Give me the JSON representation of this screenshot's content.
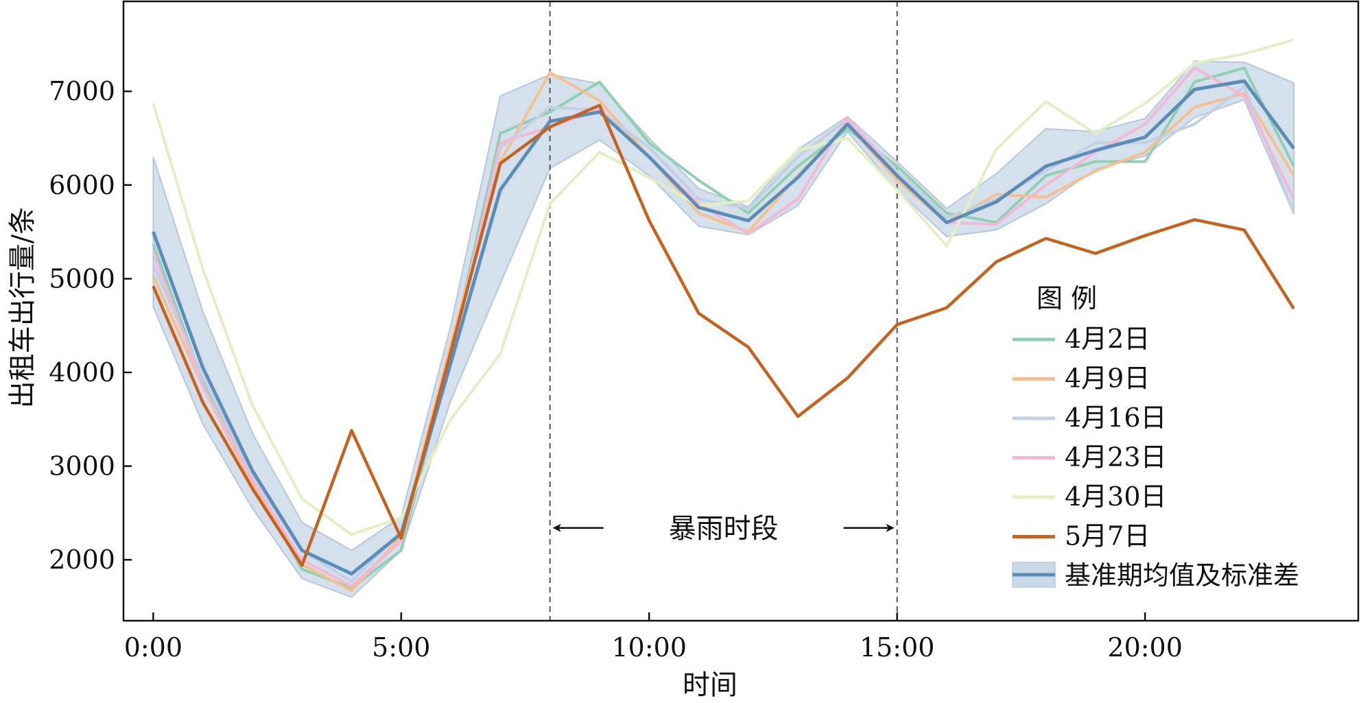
{
  "chart_data": {
    "type": "line",
    "xlabel": "时间",
    "ylabel": "出租车出行量/条",
    "x": [
      0,
      1,
      2,
      3,
      4,
      5,
      6,
      7,
      8,
      9,
      10,
      11,
      12,
      13,
      14,
      15,
      16,
      17,
      18,
      19,
      20,
      21,
      22,
      23
    ],
    "xlim": [
      -0.6,
      24.3
    ],
    "ylim": [
      1350,
      7960
    ],
    "xticks": [
      0,
      5,
      10,
      15,
      20
    ],
    "xtick_labels": [
      "0:00",
      "5:00",
      "10:00",
      "15:00",
      "20:00"
    ],
    "yticks": [
      2000,
      3000,
      4000,
      5000,
      6000,
      7000
    ],
    "ytick_labels": [
      "2000",
      "3000",
      "4000",
      "5000",
      "6000",
      "7000"
    ],
    "grid": false,
    "series": [
      {
        "name": "4月2日",
        "color": "#8fd0b2",
        "values": [
          5370,
          3900,
          2850,
          1900,
          1700,
          2100,
          4200,
          6550,
          6780,
          7100,
          6450,
          6050,
          5700,
          6200,
          6600,
          6200,
          5700,
          5600,
          6100,
          6250,
          6250,
          7100,
          7250,
          6200
        ]
      },
      {
        "name": "4月9日",
        "color": "#f5c08e",
        "values": [
          5030,
          3850,
          2800,
          1950,
          1670,
          2250,
          4300,
          6250,
          7200,
          6900,
          6300,
          5700,
          5500,
          6100,
          6650,
          6050,
          5600,
          5900,
          5870,
          6150,
          6350,
          6830,
          6980,
          6100
        ]
      },
      {
        "name": "4月16日",
        "color": "#c3cfe2",
        "values": [
          5150,
          3950,
          2900,
          2100,
          1770,
          2300,
          4100,
          6400,
          6830,
          6800,
          6400,
          5850,
          5750,
          6300,
          6700,
          6150,
          5650,
          5850,
          6150,
          6450,
          6450,
          6650,
          7050,
          5700
        ]
      },
      {
        "name": "4月23日",
        "color": "#f2b8d6",
        "values": [
          5280,
          3850,
          2850,
          2000,
          1720,
          2200,
          4150,
          6450,
          6620,
          6800,
          6300,
          5800,
          5480,
          5850,
          6720,
          6100,
          5600,
          5580,
          6000,
          6350,
          6650,
          7250,
          6950,
          5850
        ]
      },
      {
        "name": "4月30日",
        "color": "#e3efc3",
        "values": [
          6870,
          5100,
          3650,
          2650,
          2270,
          2450,
          3500,
          4200,
          5800,
          6350,
          6080,
          5780,
          5830,
          6370,
          6500,
          5950,
          5350,
          6380,
          6890,
          6550,
          6870,
          7300,
          7400,
          7550
        ]
      },
      {
        "name": "5月7日",
        "color": "#c6611e",
        "values": [
          4920,
          3680,
          2760,
          1940,
          3380,
          2230,
          4220,
          6230,
          6620,
          6850,
          5620,
          4630,
          4270,
          3530,
          3940,
          4510,
          4690,
          5180,
          5430,
          5270,
          5460,
          5630,
          5520,
          4680
        ]
      }
    ],
    "baseline": {
      "name": "基准期均值及标准差",
      "line_color": "#5b8db8",
      "band_color": "#c9d9e8",
      "mean": [
        5500,
        4050,
        2950,
        2100,
        1850,
        2280,
        4100,
        5950,
        6680,
        6780,
        6300,
        5760,
        5620,
        6080,
        6650,
        6100,
        5600,
        5820,
        6200,
        6370,
        6510,
        7020,
        7110,
        6390
      ],
      "std": [
        800,
        600,
        400,
        300,
        250,
        180,
        400,
        1000,
        500,
        300,
        200,
        200,
        150,
        300,
        80,
        150,
        150,
        300,
        400,
        200,
        200,
        300,
        200,
        700
      ]
    },
    "legend": {
      "title": "图 例",
      "position": "lower-right"
    },
    "annotations": [
      {
        "type": "vline",
        "x": 8,
        "style": "dashed"
      },
      {
        "type": "vline",
        "x": 15,
        "style": "dashed"
      },
      {
        "type": "double-arrow",
        "x_start": 8,
        "x_end": 15,
        "y": 2340,
        "text": "暴雨时段"
      }
    ]
  }
}
